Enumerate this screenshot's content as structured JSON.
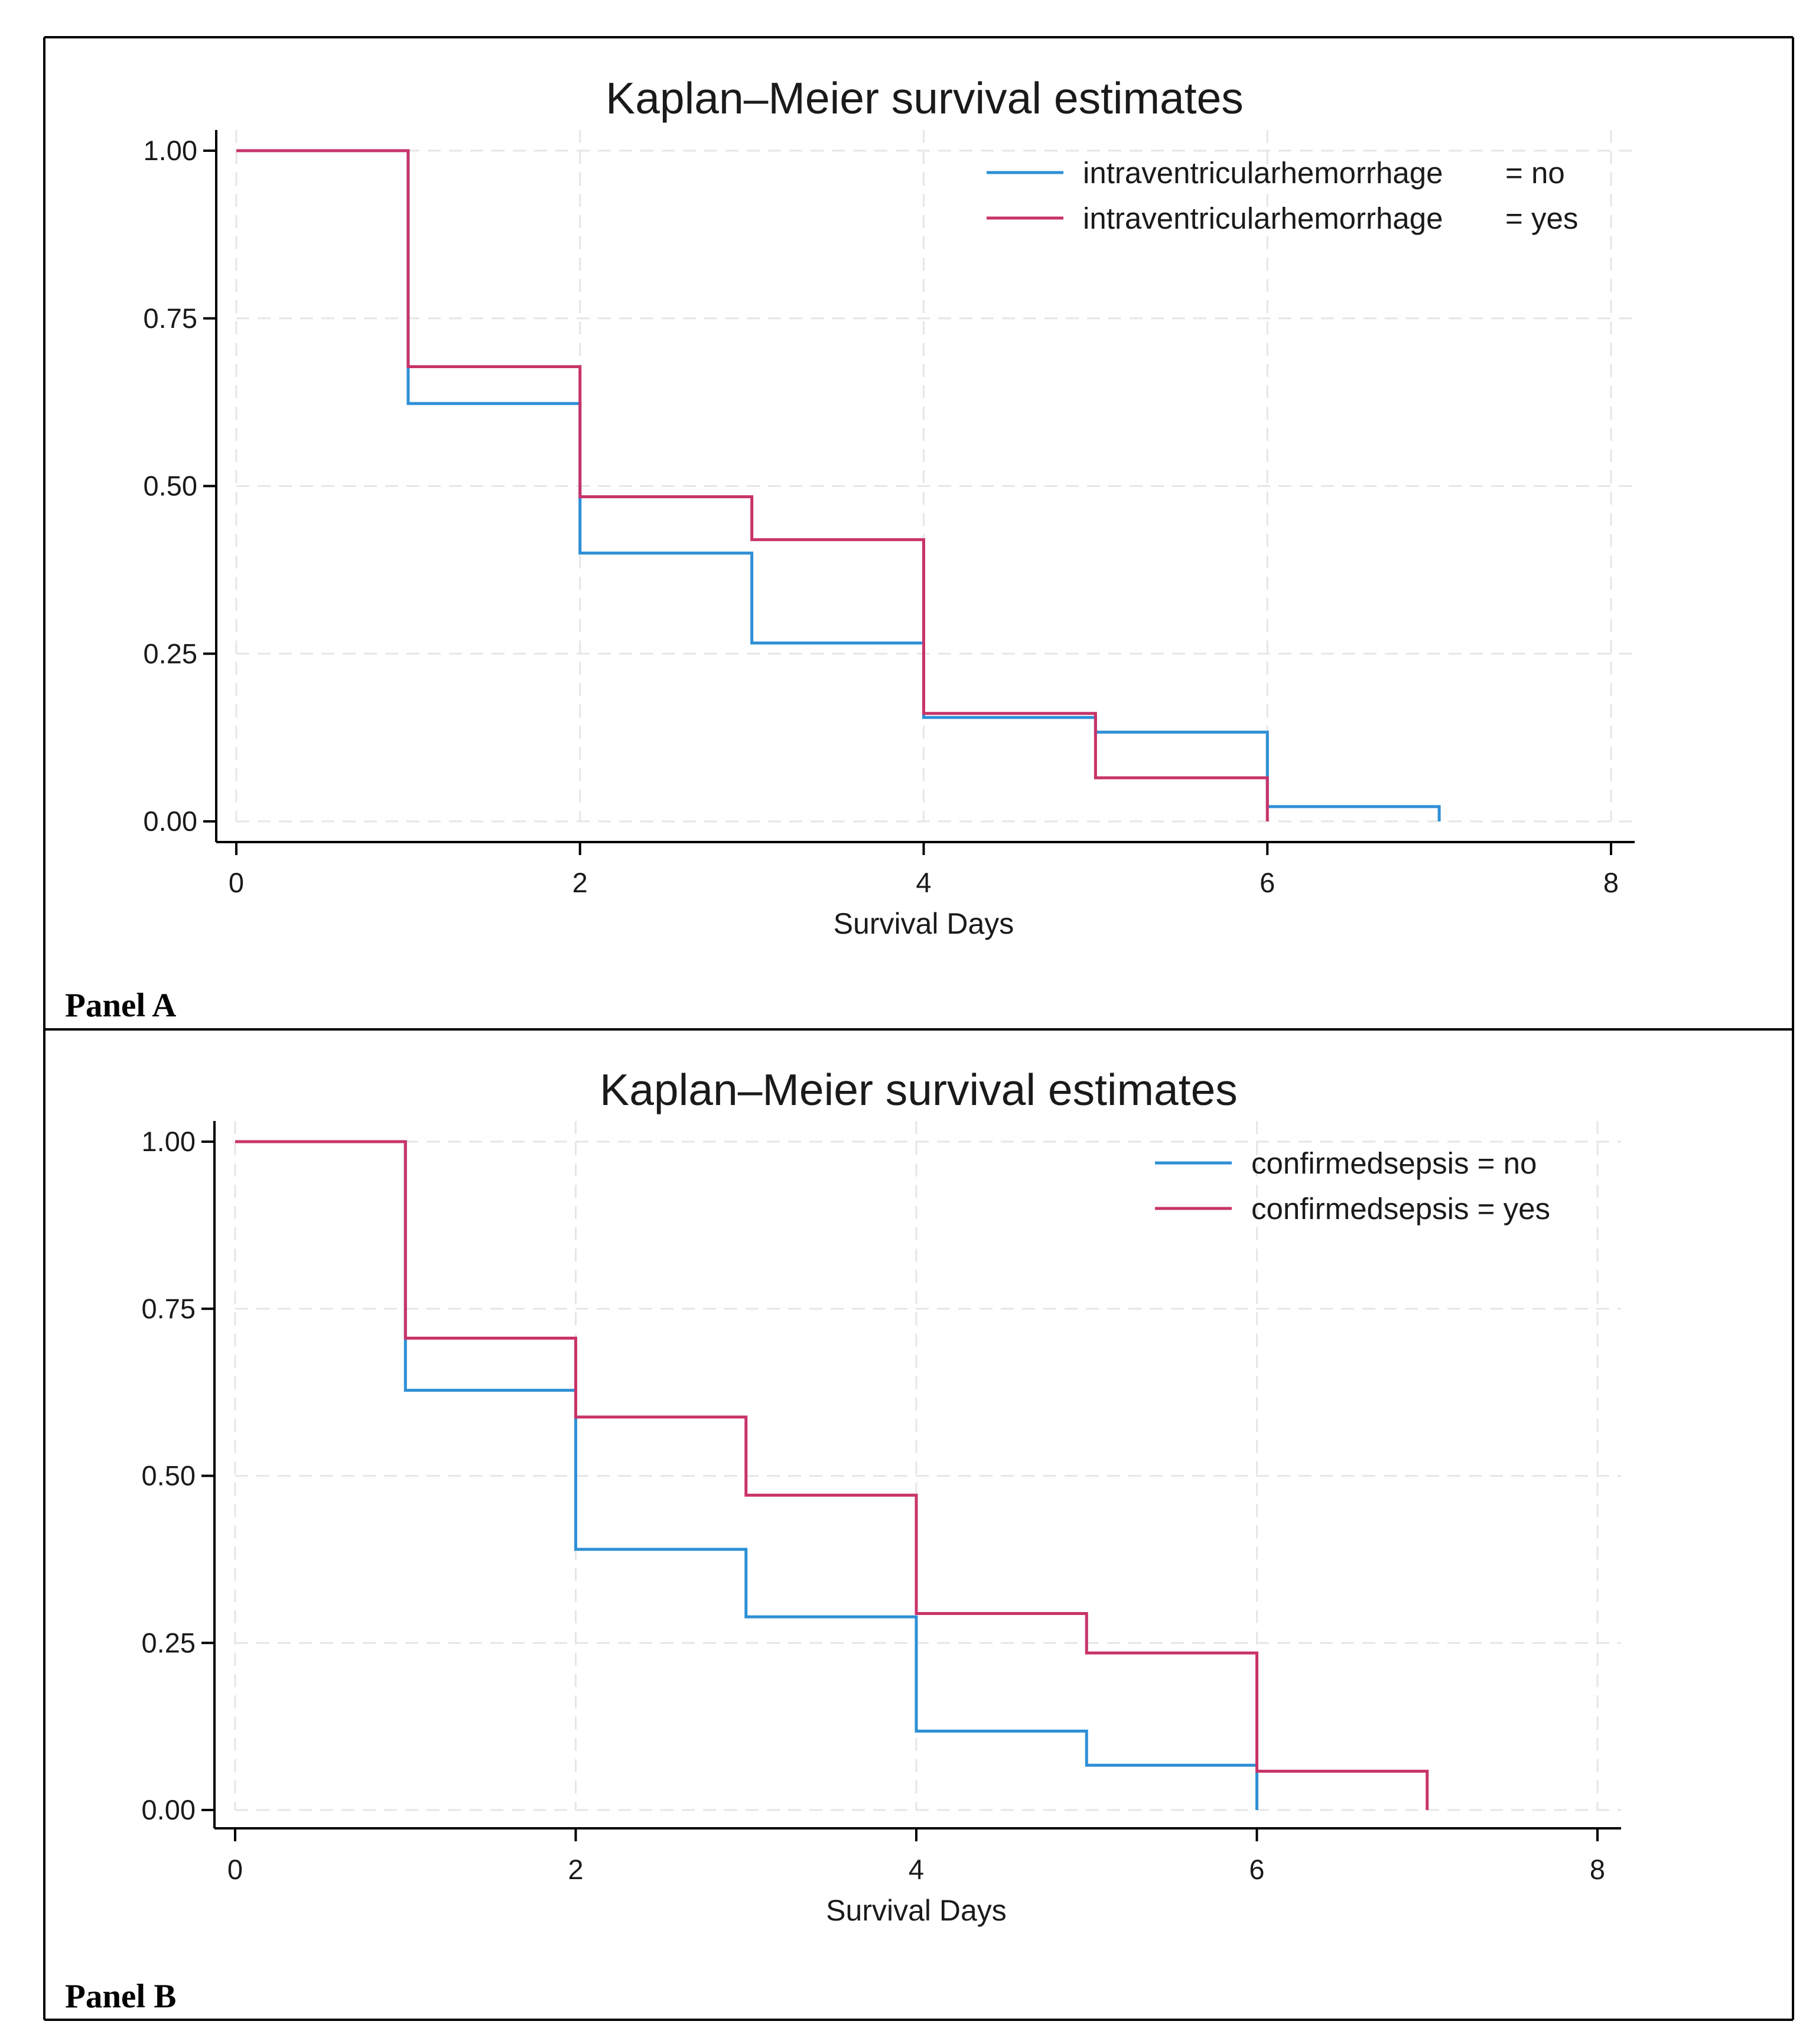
{
  "chart_data": [
    {
      "type": "line",
      "step": true,
      "title": "Kaplan–Meier survival estimates",
      "xlabel": "Survival Days",
      "ylabel": "",
      "xlim": [
        0,
        8
      ],
      "ylim": [
        0,
        1
      ],
      "xticks": [
        0,
        2,
        4,
        6,
        8
      ],
      "yticks": [
        0,
        0.25,
        0.5,
        0.75,
        1
      ],
      "xtick_labels": [
        "0",
        "2",
        "4",
        "6",
        "8"
      ],
      "ytick_labels": [
        "0.00",
        "0.25",
        "0.50",
        "0.75",
        "1.00"
      ],
      "grid": true,
      "legend_position": "top-right",
      "panel_label": "Panel A",
      "series": [
        {
          "label": "intraventricularhemorrhage",
          "group": "= no",
          "color": "#2e8fd6",
          "x": [
            0,
            1,
            2,
            3,
            4,
            5,
            6,
            7
          ],
          "y": [
            1.0,
            0.623,
            0.4,
            0.266,
            0.155,
            0.133,
            0.022,
            0.0
          ]
        },
        {
          "label": "intraventricularhemorrhage",
          "group": "= yes",
          "color": "#c83369",
          "x": [
            0,
            1,
            2,
            3,
            4,
            5,
            6
          ],
          "y": [
            1.0,
            0.678,
            0.484,
            0.42,
            0.161,
            0.065,
            0.0
          ]
        }
      ]
    },
    {
      "type": "line",
      "step": true,
      "title": "Kaplan–Meier survival estimates",
      "xlabel": "Survival Days",
      "ylabel": "",
      "xlim": [
        0,
        8
      ],
      "ylim": [
        0,
        1
      ],
      "xticks": [
        0,
        2,
        4,
        6,
        8
      ],
      "yticks": [
        0,
        0.25,
        0.5,
        0.75,
        1
      ],
      "xtick_labels": [
        "0",
        "2",
        "4",
        "6",
        "8"
      ],
      "ytick_labels": [
        "0.00",
        "0.25",
        "0.50",
        "0.75",
        "1.00"
      ],
      "grid": true,
      "legend_position": "top-right",
      "panel_label": "Panel B",
      "series": [
        {
          "label": "confirmedsepsis = no",
          "color": "#2e8fd6",
          "x": [
            0,
            1,
            2,
            3,
            4,
            5,
            6
          ],
          "y": [
            1.0,
            0.628,
            0.39,
            0.289,
            0.118,
            0.067,
            0.0
          ]
        },
        {
          "label": "confirmedsepsis = yes",
          "color": "#c83369",
          "x": [
            0,
            1,
            2,
            3,
            4,
            5,
            6,
            7
          ],
          "y": [
            1.0,
            0.706,
            0.588,
            0.471,
            0.294,
            0.235,
            0.058,
            0.0
          ]
        }
      ]
    }
  ]
}
